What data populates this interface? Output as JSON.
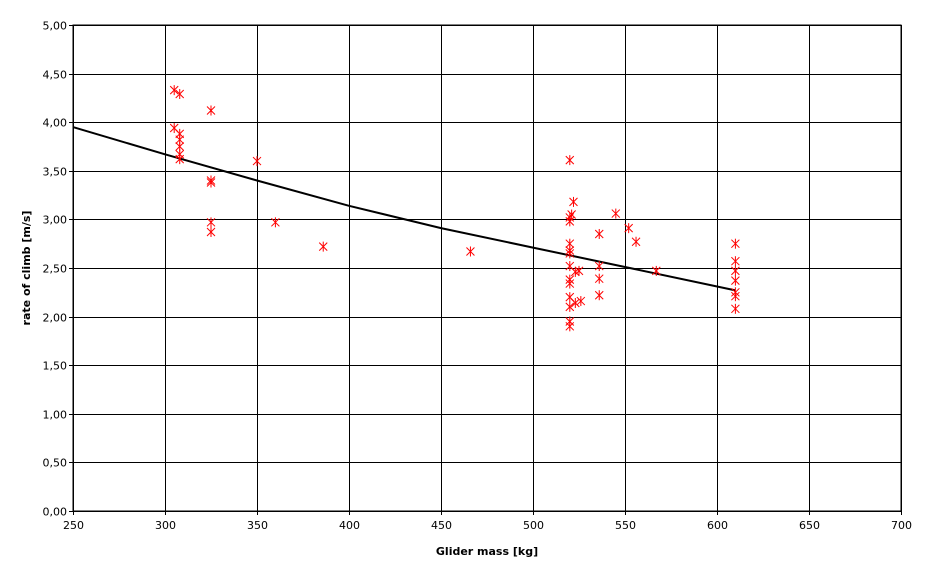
{
  "chart_data": {
    "type": "scatter",
    "title": "",
    "xlabel": "Glider mass [kg]",
    "ylabel": "rate of climb [m/s]",
    "xlim": [
      250,
      700
    ],
    "ylim": [
      0,
      5
    ],
    "x_ticks": [
      "250",
      "300",
      "350",
      "400",
      "450",
      "500",
      "550",
      "600",
      "650",
      "700"
    ],
    "y_ticks": [
      "0,00",
      "0,50",
      "1,00",
      "1,50",
      "2,00",
      "2,50",
      "3,00",
      "3,50",
      "4,00",
      "4,50",
      "5,00"
    ],
    "grid": true,
    "legend": "none",
    "marker_color": "#ff0000",
    "trend_color": "#000000",
    "points": [
      {
        "x": 305,
        "y": 4.33
      },
      {
        "x": 308,
        "y": 4.29
      },
      {
        "x": 325,
        "y": 4.12
      },
      {
        "x": 305,
        "y": 3.94
      },
      {
        "x": 308,
        "y": 3.88
      },
      {
        "x": 308,
        "y": 3.82
      },
      {
        "x": 308,
        "y": 3.75
      },
      {
        "x": 308,
        "y": 3.67
      },
      {
        "x": 308,
        "y": 3.62
      },
      {
        "x": 350,
        "y": 3.6
      },
      {
        "x": 325,
        "y": 3.4
      },
      {
        "x": 325,
        "y": 3.38
      },
      {
        "x": 325,
        "y": 2.97
      },
      {
        "x": 325,
        "y": 2.87
      },
      {
        "x": 360,
        "y": 2.97
      },
      {
        "x": 386,
        "y": 2.72
      },
      {
        "x": 466,
        "y": 2.67
      },
      {
        "x": 520,
        "y": 3.61
      },
      {
        "x": 522,
        "y": 3.18
      },
      {
        "x": 521,
        "y": 3.05
      },
      {
        "x": 520,
        "y": 3.02
      },
      {
        "x": 520,
        "y": 2.98
      },
      {
        "x": 520,
        "y": 2.75
      },
      {
        "x": 520,
        "y": 2.68
      },
      {
        "x": 520,
        "y": 2.65
      },
      {
        "x": 520,
        "y": 2.52
      },
      {
        "x": 523,
        "y": 2.46
      },
      {
        "x": 525,
        "y": 2.47
      },
      {
        "x": 520,
        "y": 2.38
      },
      {
        "x": 520,
        "y": 2.34
      },
      {
        "x": 520,
        "y": 2.2
      },
      {
        "x": 523,
        "y": 2.14
      },
      {
        "x": 520,
        "y": 2.1
      },
      {
        "x": 520,
        "y": 1.95
      },
      {
        "x": 520,
        "y": 1.9
      },
      {
        "x": 526,
        "y": 2.16
      },
      {
        "x": 536,
        "y": 2.85
      },
      {
        "x": 536,
        "y": 2.52
      },
      {
        "x": 536,
        "y": 2.39
      },
      {
        "x": 536,
        "y": 2.22
      },
      {
        "x": 545,
        "y": 3.06
      },
      {
        "x": 552,
        "y": 2.91
      },
      {
        "x": 556,
        "y": 2.77
      },
      {
        "x": 567,
        "y": 2.47
      },
      {
        "x": 610,
        "y": 2.75
      },
      {
        "x": 610,
        "y": 2.57
      },
      {
        "x": 610,
        "y": 2.47
      },
      {
        "x": 610,
        "y": 2.37
      },
      {
        "x": 610,
        "y": 2.25
      },
      {
        "x": 610,
        "y": 2.21
      },
      {
        "x": 610,
        "y": 2.08
      }
    ],
    "trendline": [
      {
        "x": 250,
        "y": 3.95
      },
      {
        "x": 300,
        "y": 3.67
      },
      {
        "x": 350,
        "y": 3.4
      },
      {
        "x": 400,
        "y": 3.14
      },
      {
        "x": 450,
        "y": 2.91
      },
      {
        "x": 500,
        "y": 2.71
      },
      {
        "x": 550,
        "y": 2.51
      },
      {
        "x": 610,
        "y": 2.27
      }
    ]
  }
}
